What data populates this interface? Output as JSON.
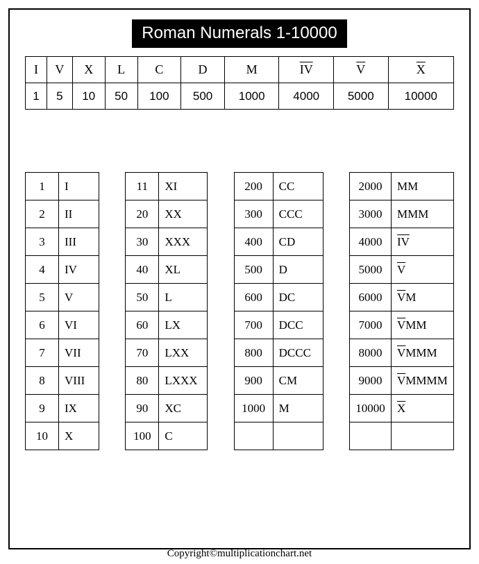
{
  "title": "Roman Numerals 1-10000",
  "copyright": "Copyright©multiplicationchart.net",
  "key_table": {
    "romans": [
      "I",
      "V",
      "X",
      "L",
      "C",
      "D",
      "M",
      "IV",
      "V",
      "X"
    ],
    "romans_overline": [
      false,
      false,
      false,
      false,
      false,
      false,
      false,
      true,
      true,
      true
    ],
    "arabic": [
      "1",
      "5",
      "10",
      "50",
      "100",
      "500",
      "1000",
      "4000",
      "5000",
      "10000"
    ]
  },
  "tables": [
    {
      "class": "t1",
      "col_n_width": 48,
      "col_r_width": 58,
      "rows": [
        {
          "n": "1",
          "r": "I",
          "ov": false
        },
        {
          "n": "2",
          "r": "II",
          "ov": false
        },
        {
          "n": "3",
          "r": "III",
          "ov": false
        },
        {
          "n": "4",
          "r": "IV",
          "ov": false
        },
        {
          "n": "5",
          "r": "V",
          "ov": false
        },
        {
          "n": "6",
          "r": "VI",
          "ov": false
        },
        {
          "n": "7",
          "r": "VII",
          "ov": false
        },
        {
          "n": "8",
          "r": "VIII",
          "ov": false
        },
        {
          "n": "9",
          "r": "IX",
          "ov": false
        },
        {
          "n": "10",
          "r": "X",
          "ov": false
        }
      ]
    },
    {
      "class": "t2",
      "col_n_width": 48,
      "col_r_width": 70,
      "rows": [
        {
          "n": "11",
          "r": "XI",
          "ov": false
        },
        {
          "n": "20",
          "r": "XX",
          "ov": false
        },
        {
          "n": "30",
          "r": "XXX",
          "ov": false
        },
        {
          "n": "40",
          "r": "XL",
          "ov": false
        },
        {
          "n": "50",
          "r": "L",
          "ov": false
        },
        {
          "n": "60",
          "r": "LX",
          "ov": false
        },
        {
          "n": "70",
          "r": "LXX",
          "ov": false
        },
        {
          "n": "80",
          "r": "LXXX",
          "ov": false
        },
        {
          "n": "90",
          "r": "XC",
          "ov": false
        },
        {
          "n": "100",
          "r": "C",
          "ov": false
        }
      ]
    },
    {
      "class": "t3",
      "col_n_width": 56,
      "col_r_width": 72,
      "rows": [
        {
          "n": "200",
          "r": "CC",
          "ov": false
        },
        {
          "n": "300",
          "r": "CCC",
          "ov": false
        },
        {
          "n": "400",
          "r": "CD",
          "ov": false
        },
        {
          "n": "500",
          "r": "D",
          "ov": false
        },
        {
          "n": "600",
          "r": "DC",
          "ov": false
        },
        {
          "n": "700",
          "r": "DCC",
          "ov": false
        },
        {
          "n": "800",
          "r": "DCCC",
          "ov": false
        },
        {
          "n": "900",
          "r": "CM",
          "ov": false
        },
        {
          "n": "1000",
          "r": "M",
          "ov": false
        },
        {
          "n": "",
          "r": "",
          "ov": false
        }
      ]
    },
    {
      "class": "t4",
      "col_n_width": 60,
      "col_r_width": 90,
      "rows": [
        {
          "n": "2000",
          "r": "MM",
          "ov": false
        },
        {
          "n": "3000",
          "r": "MMM",
          "ov": false
        },
        {
          "n": "4000",
          "r": "IV",
          "ov": true,
          "suffix": ""
        },
        {
          "n": "5000",
          "r": "V",
          "ov": true,
          "suffix": ""
        },
        {
          "n": "6000",
          "r": "V",
          "ov": true,
          "suffix": "M"
        },
        {
          "n": "7000",
          "r": "V",
          "ov": true,
          "suffix": "MM"
        },
        {
          "n": "8000",
          "r": "V",
          "ov": true,
          "suffix": "MMM"
        },
        {
          "n": "9000",
          "r": "V",
          "ov": true,
          "suffix": "MMMM"
        },
        {
          "n": "10000",
          "r": "X",
          "ov": true,
          "suffix": ""
        },
        {
          "n": "",
          "r": "",
          "ov": false
        }
      ]
    }
  ],
  "colors": {
    "border": "#000000",
    "bg": "#ffffff",
    "title_bg": "#000000",
    "title_fg": "#ffffff"
  },
  "fonts": {
    "title_size": 24,
    "cell_size": 17,
    "copyright_size": 15
  }
}
